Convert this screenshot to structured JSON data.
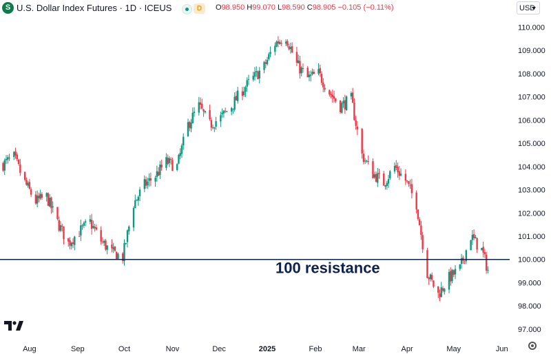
{
  "header": {
    "symbol_icon": "S",
    "title": "U.S. Dollar Index Futures · 1D · ICEUS",
    "delay_badge": "D",
    "ohlc": [
      {
        "k": "O",
        "v": "98.950"
      },
      {
        "k": "H",
        "v": "99.070"
      },
      {
        "k": "L",
        "v": "98.590"
      },
      {
        "k": "C",
        "v": "98.905"
      }
    ],
    "change": "−0.105 (−0.11%)",
    "currency": "USD",
    "icons": {
      "status": "market-status-icon",
      "logo": "tradingview-logo-icon",
      "settings": "settings-icon"
    }
  },
  "chart_data": {
    "type": "candlestick",
    "colors": {
      "up": "#089981",
      "down": "#f23645",
      "resistance": "#0b2150",
      "annotation": "#0b2150"
    },
    "y_ticks": [
      "110.000",
      "109.000",
      "108.000",
      "107.000",
      "106.000",
      "105.000",
      "104.000",
      "103.000",
      "102.000",
      "101.000",
      "100.000",
      "99.000",
      "98.000",
      "97.000"
    ],
    "x_labels": [
      {
        "label": "Aug",
        "date": "2024-08-01"
      },
      {
        "label": "Sep",
        "date": "2024-09-01"
      },
      {
        "label": "Oct",
        "date": "2024-10-01"
      },
      {
        "label": "Nov",
        "date": "2024-11-01"
      },
      {
        "label": "Dec",
        "date": "2024-12-01"
      },
      {
        "label": "2025",
        "date": "2025-01-01",
        "bold": true
      },
      {
        "label": "Feb",
        "date": "2025-02-01"
      },
      {
        "label": "Mar",
        "date": "2025-03-01"
      },
      {
        "label": "Apr",
        "date": "2025-04-01"
      },
      {
        "label": "May",
        "date": "2025-05-01"
      },
      {
        "label": "Jun",
        "date": "2025-06-01"
      }
    ],
    "ylim": [
      96.7,
      110.4
    ],
    "xlim": [
      "2024-07-13",
      "2025-06-06"
    ],
    "grid": false,
    "resistance": {
      "value": 100,
      "label": "100 resistance"
    },
    "anchors": [
      [
        "2024-07-15",
        104.1
      ],
      [
        "2024-07-22",
        104.4
      ],
      [
        "2024-07-29",
        103.3
      ],
      [
        "2024-08-05",
        102.5
      ],
      [
        "2024-08-12",
        102.7
      ],
      [
        "2024-08-19",
        101.6
      ],
      [
        "2024-08-26",
        100.7
      ],
      [
        "2024-09-02",
        101.2
      ],
      [
        "2024-09-09",
        101.6
      ],
      [
        "2024-09-16",
        100.8
      ],
      [
        "2024-09-23",
        100.3
      ],
      [
        "2024-09-30",
        100.1
      ],
      [
        "2024-10-07",
        102.4
      ],
      [
        "2024-10-14",
        103.2
      ],
      [
        "2024-10-21",
        103.6
      ],
      [
        "2024-10-28",
        104.2
      ],
      [
        "2024-11-04",
        104.0
      ],
      [
        "2024-11-11",
        105.8
      ],
      [
        "2024-11-18",
        106.6
      ],
      [
        "2024-11-25",
        105.8
      ],
      [
        "2024-12-02",
        106.1
      ],
      [
        "2024-12-09",
        106.6
      ],
      [
        "2024-12-16",
        107.3
      ],
      [
        "2024-12-23",
        107.8
      ],
      [
        "2024-12-30",
        108.3
      ],
      [
        "2025-01-06",
        109.3
      ],
      [
        "2025-01-13",
        109.6
      ],
      [
        "2025-01-20",
        108.4
      ],
      [
        "2025-01-27",
        107.8
      ],
      [
        "2025-02-03",
        108.0
      ],
      [
        "2025-02-10",
        107.2
      ],
      [
        "2025-02-17",
        106.6
      ],
      [
        "2025-02-24",
        106.9
      ],
      [
        "2025-03-03",
        104.5
      ],
      [
        "2025-03-10",
        103.7
      ],
      [
        "2025-03-17",
        103.3
      ],
      [
        "2025-03-24",
        104.0
      ],
      [
        "2025-03-31",
        103.4
      ],
      [
        "2025-04-07",
        102.4
      ],
      [
        "2025-04-14",
        99.4
      ],
      [
        "2025-04-21",
        98.5
      ],
      [
        "2025-04-28",
        99.2
      ],
      [
        "2025-05-05",
        99.6
      ],
      [
        "2025-05-12",
        101.0
      ],
      [
        "2025-05-19",
        100.4
      ],
      [
        "2025-05-26",
        98.9
      ]
    ]
  }
}
